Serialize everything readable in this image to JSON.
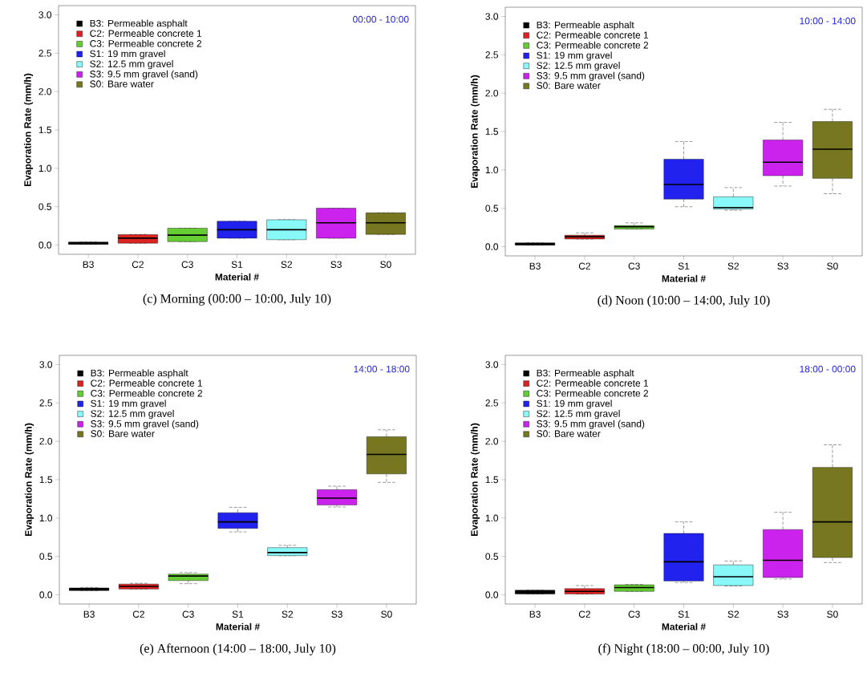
{
  "chart_data": [
    {
      "type": "box",
      "title": "(c) Morning (00:00 – 10:00, July 10)",
      "xlabel": "Material #",
      "ylabel": "Evaporation Rate (mm/h)",
      "annotations": [
        "00:00 - 10:00"
      ],
      "legend": "top left",
      "categories": [
        "B3",
        "C2",
        "C3",
        "S1",
        "S2",
        "S3",
        "S0"
      ],
      "ylim": [
        -0.12,
        3.12
      ],
      "yticks": [
        {
          "value": 0,
          "label": "0.0"
        },
        0.5,
        {
          "value": 1,
          "label": "1.0"
        },
        1.5,
        {
          "value": 2,
          "label": "2.0"
        },
        2.5,
        {
          "value": 3,
          "label": "3.0"
        }
      ],
      "series": [
        {
          "name": "B3: Permeable asphalt",
          "color": "#000000",
          "boxes": [
            {
              "low": 0.01,
              "q1": 0.01,
              "median": 0.02,
              "q3": 0.04,
              "high": 0.04
            },
            null,
            null,
            null,
            null,
            null,
            null
          ]
        },
        {
          "name": "C2: Permeable concrete 1",
          "color": "#dd2222",
          "boxes": [
            null,
            {
              "low": 0.025,
              "q1": 0.025,
              "median": 0.09,
              "q3": 0.137,
              "high": 0.137
            },
            null,
            null,
            null,
            null,
            null
          ]
        },
        {
          "name": "C3: Permeable concrete 2",
          "color": "#66cc33",
          "boxes": [
            null,
            null,
            {
              "low": 0.045,
              "q1": 0.045,
              "median": 0.13,
              "q3": 0.22,
              "high": 0.22
            },
            null,
            null,
            null,
            null
          ]
        },
        {
          "name": "S1: 19 mm gravel",
          "color": "#2222ee",
          "boxes": [
            null,
            null,
            null,
            {
              "low": 0.09,
              "q1": 0.09,
              "median": 0.2,
              "q3": 0.31,
              "high": 0.31
            },
            null,
            null,
            null
          ]
        },
        {
          "name": "S2: 12.5 mm gravel",
          "color": "#88f8f8",
          "boxes": [
            null,
            null,
            null,
            null,
            {
              "low": 0.07,
              "q1": 0.07,
              "median": 0.2,
              "q3": 0.33,
              "high": 0.33
            },
            null,
            null
          ]
        },
        {
          "name": "S3: 9.5 mm gravel (sand)",
          "color": "#cc22ee",
          "boxes": [
            null,
            null,
            null,
            null,
            null,
            {
              "low": 0.09,
              "q1": 0.09,
              "median": 0.29,
              "q3": 0.48,
              "high": 0.48
            },
            null
          ]
        },
        {
          "name": "S0: Bare water",
          "color": "#777722",
          "boxes": [
            null,
            null,
            null,
            null,
            null,
            null,
            {
              "low": 0.14,
              "q1": 0.14,
              "median": 0.29,
              "q3": 0.42,
              "high": 0.42
            }
          ]
        }
      ]
    },
    {
      "type": "box",
      "title": "(d) Noon (10:00 – 14:00, July 10)",
      "xlabel": "Material #",
      "ylabel": "Evaporation Rate (mm/h)",
      "annotations": [
        "10:00 - 14:00"
      ],
      "legend": "top left",
      "categories": [
        "B3",
        "C2",
        "C3",
        "S1",
        "S2",
        "S3",
        "S0"
      ],
      "ylim": [
        -0.12,
        3.12
      ],
      "yticks": [
        {
          "value": 0,
          "label": "0.0"
        },
        0.5,
        {
          "value": 1,
          "label": "1.0"
        },
        1.5,
        {
          "value": 2,
          "label": "2.0"
        },
        2.5,
        {
          "value": 3,
          "label": "3.0"
        }
      ],
      "series": [
        {
          "name": "B3: Permeable asphalt",
          "color": "#000000",
          "boxes": [
            {
              "low": 0.02,
              "q1": 0.02,
              "median": 0.03,
              "q3": 0.05,
              "high": 0.05
            },
            null,
            null,
            null,
            null,
            null,
            null
          ]
        },
        {
          "name": "C2: Permeable concrete 1",
          "color": "#dd2222",
          "boxes": [
            null,
            {
              "low": 0.1,
              "q1": 0.1,
              "median": 0.13,
              "q3": 0.15,
              "high": 0.18
            },
            null,
            null,
            null,
            null,
            null
          ]
        },
        {
          "name": "C3: Permeable concrete 2",
          "color": "#66cc33",
          "boxes": [
            null,
            null,
            {
              "low": 0.23,
              "q1": 0.23,
              "median": 0.26,
              "q3": 0.275,
              "high": 0.31
            },
            null,
            null,
            null,
            null
          ]
        },
        {
          "name": "S1: 19 mm gravel",
          "color": "#2222ee",
          "boxes": [
            null,
            null,
            null,
            {
              "low": 0.52,
              "q1": 0.62,
              "median": 0.81,
              "q3": 1.14,
              "high": 1.37
            },
            null,
            null,
            null
          ]
        },
        {
          "name": "S2: 12.5 mm gravel",
          "color": "#88f8f8",
          "boxes": [
            null,
            null,
            null,
            null,
            {
              "low": 0.475,
              "q1": 0.49,
              "median": 0.51,
              "q3": 0.65,
              "high": 0.77
            },
            null,
            null
          ]
        },
        {
          "name": "S3: 9.5 mm gravel (sand)",
          "color": "#cc22ee",
          "boxes": [
            null,
            null,
            null,
            null,
            null,
            {
              "low": 0.79,
              "q1": 0.925,
              "median": 1.1,
              "q3": 1.39,
              "high": 1.62
            },
            null
          ]
        },
        {
          "name": "S0: Bare water",
          "color": "#777722",
          "boxes": [
            null,
            null,
            null,
            null,
            null,
            null,
            {
              "low": 0.69,
              "q1": 0.89,
              "median": 1.27,
              "q3": 1.63,
              "high": 1.79
            }
          ]
        }
      ]
    },
    {
      "type": "box",
      "title": "(e) Afternoon (14:00 – 18:00, July 10)",
      "xlabel": "Material #",
      "ylabel": "Evaporation Rate (mm/h)",
      "annotations": [
        "14:00 - 18:00"
      ],
      "legend": "top left",
      "categories": [
        "B3",
        "C2",
        "C3",
        "S1",
        "S2",
        "S3",
        "S0"
      ],
      "ylim": [
        -0.12,
        3.12
      ],
      "yticks": [
        {
          "value": 0,
          "label": "0.0"
        },
        0.5,
        {
          "value": 1,
          "label": "1.0"
        },
        1.5,
        {
          "value": 2,
          "label": "2.0"
        },
        2.5,
        {
          "value": 3,
          "label": "3.0"
        }
      ],
      "series": [
        {
          "name": "B3: Permeable asphalt",
          "color": "#000000",
          "boxes": [
            {
              "low": 0.055,
              "q1": 0.055,
              "median": 0.07,
              "q3": 0.09,
              "high": 0.095
            },
            null,
            null,
            null,
            null,
            null,
            null
          ]
        },
        {
          "name": "C2: Permeable concrete 1",
          "color": "#dd2222",
          "boxes": [
            null,
            {
              "low": 0.075,
              "q1": 0.075,
              "median": 0.11,
              "q3": 0.14,
              "high": 0.15
            },
            null,
            null,
            null,
            null,
            null
          ]
        },
        {
          "name": "C3: Permeable concrete 2",
          "color": "#66cc33",
          "boxes": [
            null,
            null,
            {
              "low": 0.145,
              "q1": 0.185,
              "median": 0.245,
              "q3": 0.27,
              "high": 0.29
            },
            null,
            null,
            null,
            null
          ]
        },
        {
          "name": "S1: 19 mm gravel",
          "color": "#2222ee",
          "boxes": [
            null,
            null,
            null,
            {
              "low": 0.82,
              "q1": 0.865,
              "median": 0.95,
              "q3": 1.07,
              "high": 1.14
            },
            null,
            null,
            null
          ]
        },
        {
          "name": "S2: 12.5 mm gravel",
          "color": "#88f8f8",
          "boxes": [
            null,
            null,
            null,
            null,
            {
              "low": 0.51,
              "q1": 0.51,
              "median": 0.55,
              "q3": 0.615,
              "high": 0.645
            },
            null,
            null
          ]
        },
        {
          "name": "S3: 9.5 mm gravel (sand)",
          "color": "#cc22ee",
          "boxes": [
            null,
            null,
            null,
            null,
            null,
            {
              "low": 1.145,
              "q1": 1.17,
              "median": 1.26,
              "q3": 1.37,
              "high": 1.415
            },
            null
          ]
        },
        {
          "name": "S0: Bare water",
          "color": "#777722",
          "boxes": [
            null,
            null,
            null,
            null,
            null,
            null,
            {
              "low": 1.465,
              "q1": 1.575,
              "median": 1.83,
              "q3": 2.06,
              "high": 2.15
            }
          ]
        }
      ]
    },
    {
      "type": "box",
      "title": "(f) Night (18:00 – 00:00, July 10)",
      "xlabel": "Material #",
      "ylabel": "Evaporation Rate (mm/h)",
      "annotations": [
        "18:00 - 00:00"
      ],
      "legend": "top left",
      "categories": [
        "B3",
        "C2",
        "C3",
        "S1",
        "S2",
        "S3",
        "S0"
      ],
      "ylim": [
        -0.12,
        3.12
      ],
      "yticks": [
        {
          "value": 0,
          "label": "0.0"
        },
        0.5,
        {
          "value": 1,
          "label": "1.0"
        },
        1.5,
        {
          "value": 2,
          "label": "2.0"
        },
        2.5,
        {
          "value": 3,
          "label": "3.0"
        }
      ],
      "series": [
        {
          "name": "B3: Permeable asphalt",
          "color": "#000000",
          "boxes": [
            {
              "low": 0.01,
              "q1": 0.01,
              "median": 0.035,
              "q3": 0.06,
              "high": 0.06
            },
            null,
            null,
            null,
            null,
            null,
            null
          ]
        },
        {
          "name": "C2: Permeable concrete 1",
          "color": "#dd2222",
          "boxes": [
            null,
            {
              "low": 0.01,
              "q1": 0.01,
              "median": 0.045,
              "q3": 0.08,
              "high": 0.12
            },
            null,
            null,
            null,
            null,
            null
          ]
        },
        {
          "name": "C3: Permeable concrete 2",
          "color": "#66cc33",
          "boxes": [
            null,
            null,
            {
              "low": 0.045,
              "q1": 0.045,
              "median": 0.095,
              "q3": 0.13,
              "high": 0.135
            },
            null,
            null,
            null,
            null
          ]
        },
        {
          "name": "S1: 19 mm gravel",
          "color": "#2222ee",
          "boxes": [
            null,
            null,
            null,
            {
              "low": 0.16,
              "q1": 0.18,
              "median": 0.43,
              "q3": 0.8,
              "high": 0.95
            },
            null,
            null,
            null
          ]
        },
        {
          "name": "S2: 12.5 mm gravel",
          "color": "#88f8f8",
          "boxes": [
            null,
            null,
            null,
            null,
            {
              "low": 0.115,
              "q1": 0.12,
              "median": 0.235,
              "q3": 0.39,
              "high": 0.44
            },
            null,
            null
          ]
        },
        {
          "name": "S3: 9.5 mm gravel (sand)",
          "color": "#cc22ee",
          "boxes": [
            null,
            null,
            null,
            null,
            null,
            {
              "low": 0.205,
              "q1": 0.225,
              "median": 0.45,
              "q3": 0.85,
              "high": 1.075
            },
            null
          ]
        },
        {
          "name": "S0: Bare water",
          "color": "#777722",
          "boxes": [
            null,
            null,
            null,
            null,
            null,
            null,
            {
              "low": 0.42,
              "q1": 0.485,
              "median": 0.95,
              "q3": 1.66,
              "high": 1.955
            }
          ]
        }
      ]
    }
  ]
}
